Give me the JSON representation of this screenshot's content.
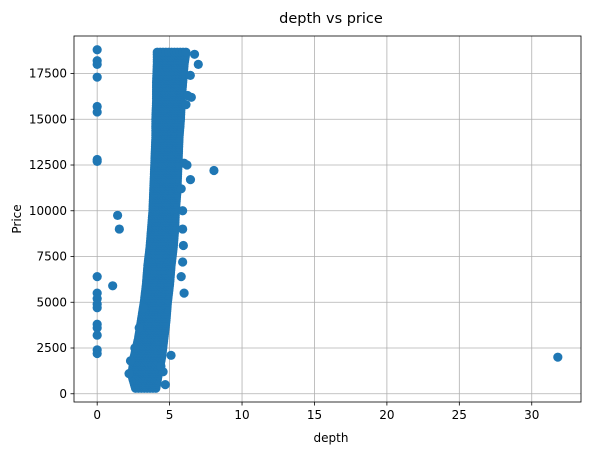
{
  "chart_data": {
    "type": "scatter",
    "title": "depth vs price",
    "xlabel": "depth",
    "ylabel": "Price",
    "xlim": [
      -1.6,
      33.4
    ],
    "ylim": [
      -450,
      19550
    ],
    "xticks": [
      0,
      5,
      10,
      15,
      20,
      25,
      30
    ],
    "yticks": [
      0,
      2500,
      5000,
      7500,
      10000,
      12500,
      15000,
      17500
    ],
    "ytick_labels": [
      "0",
      "2500",
      "5000",
      "7500",
      "10000",
      "12500",
      "15000",
      "17500"
    ],
    "xtick_labels": [
      "0",
      "5",
      "10",
      "15",
      "20",
      "25",
      "30"
    ],
    "grid": true,
    "marker_color": "#1f77b4",
    "series": [
      {
        "points": [
          [
            0.0,
            18800
          ],
          [
            0.0,
            18200
          ],
          [
            0.0,
            18000
          ],
          [
            0.0,
            17300
          ],
          [
            0.0,
            15700
          ],
          [
            0.0,
            15400
          ],
          [
            0.0,
            12800
          ],
          [
            0.0,
            12700
          ],
          [
            0.0,
            6400
          ],
          [
            0.0,
            5500
          ],
          [
            0.0,
            5200
          ],
          [
            0.0,
            4900
          ],
          [
            0.0,
            4700
          ],
          [
            0.0,
            3800
          ],
          [
            0.0,
            3600
          ],
          [
            0.0,
            3200
          ],
          [
            0.0,
            2400
          ],
          [
            0.0,
            2200
          ],
          [
            1.07,
            5900
          ],
          [
            1.41,
            9750
          ],
          [
            1.53,
            9000
          ],
          [
            31.8,
            2000
          ],
          [
            8.06,
            12200
          ],
          [
            6.72,
            18550
          ],
          [
            6.98,
            18000
          ],
          [
            6.43,
            17400
          ],
          [
            6.5,
            16200
          ],
          [
            6.24,
            16300
          ],
          [
            6.13,
            15800
          ],
          [
            6.44,
            11700
          ],
          [
            6.0,
            12600
          ],
          [
            6.2,
            12500
          ],
          [
            5.8,
            11200
          ],
          [
            5.9,
            10000
          ],
          [
            5.9,
            9000
          ],
          [
            5.95,
            8100
          ],
          [
            5.9,
            7200
          ],
          [
            5.8,
            6400
          ],
          [
            6.0,
            5500
          ],
          [
            5.1,
            2100
          ],
          [
            4.7,
            500
          ],
          [
            4.55,
            1200
          ],
          [
            4.4,
            1500
          ],
          [
            2.2,
            1100
          ],
          [
            2.3,
            1800
          ],
          [
            2.6,
            2500
          ],
          [
            2.9,
            3600
          ],
          [
            3.2,
            4700
          ]
        ]
      }
    ],
    "dense_band": {
      "profile": [
        [
          300,
          2.65,
          4.05
        ],
        [
          1000,
          2.4,
          4.2
        ],
        [
          2000,
          2.55,
          4.45
        ],
        [
          3000,
          2.85,
          4.6
        ],
        [
          4000,
          3.05,
          4.75
        ],
        [
          5000,
          3.25,
          4.85
        ],
        [
          6000,
          3.4,
          5.0
        ],
        [
          7000,
          3.5,
          5.1
        ],
        [
          8000,
          3.65,
          5.25
        ],
        [
          9000,
          3.75,
          5.35
        ],
        [
          10000,
          3.85,
          5.4
        ],
        [
          11000,
          3.9,
          5.5
        ],
        [
          12000,
          3.95,
          5.55
        ],
        [
          13000,
          4.0,
          5.6
        ],
        [
          14000,
          4.05,
          5.65
        ],
        [
          15000,
          4.05,
          5.75
        ],
        [
          16000,
          4.1,
          5.8
        ],
        [
          17000,
          4.1,
          5.9
        ],
        [
          18000,
          4.15,
          6.0
        ],
        [
          18800,
          4.15,
          6.15
        ]
      ]
    }
  }
}
